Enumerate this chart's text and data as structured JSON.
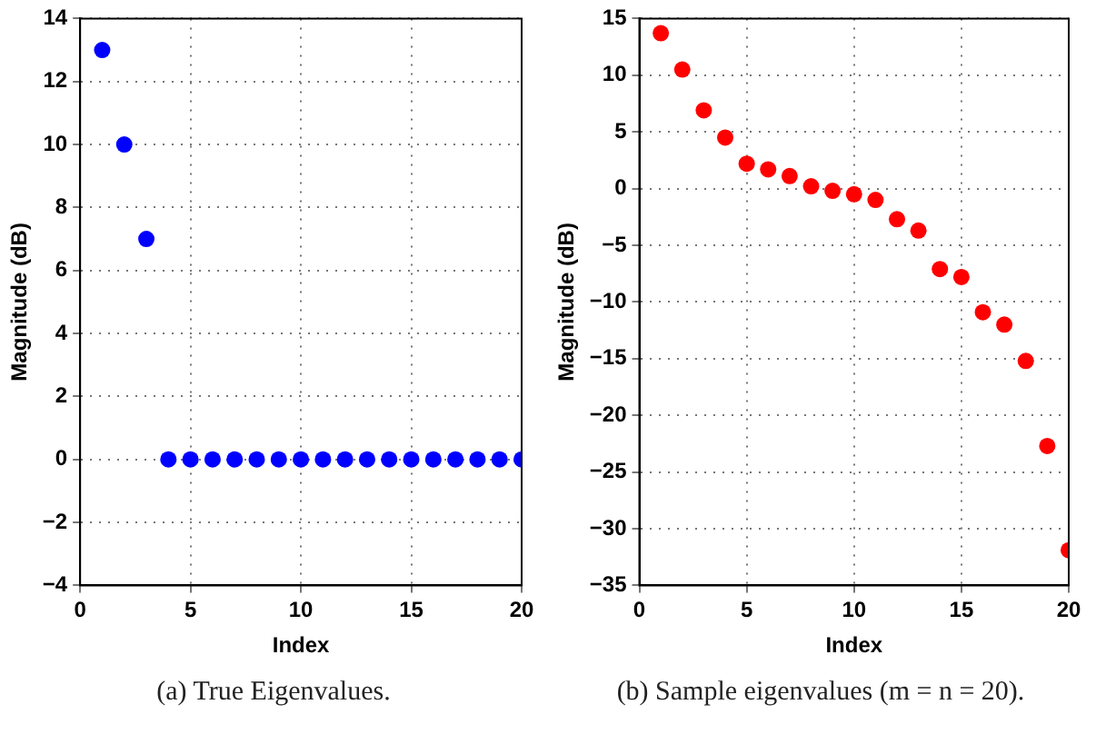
{
  "chart_data": [
    {
      "type": "scatter",
      "xlabel": "Index",
      "ylabel": "Magnitude (dB)",
      "x": [
        1,
        2,
        3,
        4,
        5,
        6,
        7,
        8,
        9,
        10,
        11,
        12,
        13,
        14,
        15,
        16,
        17,
        18,
        19,
        20
      ],
      "series": [
        {
          "color": "#0000ff",
          "values": [
            13,
            10,
            7,
            0,
            0,
            0,
            0,
            0,
            0,
            0,
            0,
            0,
            0,
            0,
            0,
            0,
            0,
            0,
            0,
            0
          ]
        }
      ],
      "xlim": [
        0,
        20
      ],
      "xticks": [
        0,
        5,
        10,
        15,
        20
      ],
      "ylim": [
        -4,
        14
      ],
      "yticks": [
        -4,
        -2,
        0,
        2,
        4,
        6,
        8,
        10,
        12,
        14
      ],
      "grid": true,
      "marker": "circle",
      "annotations": [
        "(a)  True Eigenvalues."
      ]
    },
    {
      "type": "scatter",
      "xlabel": "Index",
      "ylabel": "Magnitude (dB)",
      "x": [
        1,
        2,
        3,
        4,
        5,
        6,
        7,
        8,
        9,
        10,
        11,
        12,
        13,
        14,
        15,
        16,
        17,
        18,
        19,
        20
      ],
      "series": [
        {
          "color": "#ff0000",
          "values": [
            13.7,
            10.5,
            6.9,
            4.5,
            2.2,
            1.7,
            1.1,
            0.2,
            -0.2,
            -0.5,
            -1.0,
            -2.7,
            -3.7,
            -7.1,
            -7.8,
            -10.9,
            -12.0,
            -15.2,
            -22.7,
            -31.9
          ]
        }
      ],
      "xlim": [
        0,
        20
      ],
      "xticks": [
        0,
        5,
        10,
        15,
        20
      ],
      "ylim": [
        -35,
        15
      ],
      "yticks": [
        -35,
        -30,
        -25,
        -20,
        -15,
        -10,
        -5,
        0,
        5,
        10,
        15
      ],
      "grid": true,
      "marker": "circle",
      "annotations": [
        "(b)  Sample eigenvalues (m = n = 20)."
      ]
    }
  ]
}
